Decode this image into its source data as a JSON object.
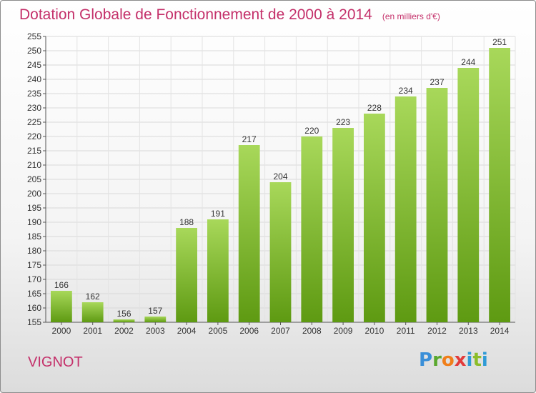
{
  "title": "Dotation Globale de Fonctionnement de 2000 à 2014",
  "unit": "(en milliers d'€)",
  "commune": "VIGNOT",
  "logo": "Proxiti",
  "colors": {
    "bar_light": "#a8d85a",
    "bar_dark": "#5e9a12",
    "title": "#c4306a",
    "grid": "#d9d9d9"
  },
  "chart_data": {
    "type": "bar",
    "title": "Dotation Globale de Fonctionnement de 2000 à 2014",
    "subtitle": "(en milliers d'€)",
    "categories": [
      "2000",
      "2001",
      "2002",
      "2003",
      "2004",
      "2005",
      "2006",
      "2007",
      "2008",
      "2009",
      "2010",
      "2011",
      "2012",
      "2013",
      "2014"
    ],
    "values": [
      166,
      162,
      156,
      157,
      188,
      191,
      217,
      204,
      220,
      223,
      228,
      234,
      237,
      244,
      251
    ],
    "xlabel": "",
    "ylabel": "",
    "ylim": [
      155,
      255
    ],
    "yticks": [
      155,
      160,
      165,
      170,
      175,
      180,
      185,
      190,
      195,
      200,
      205,
      210,
      215,
      220,
      225,
      230,
      235,
      240,
      245,
      250,
      255
    ],
    "grid": true,
    "legend": "none"
  }
}
